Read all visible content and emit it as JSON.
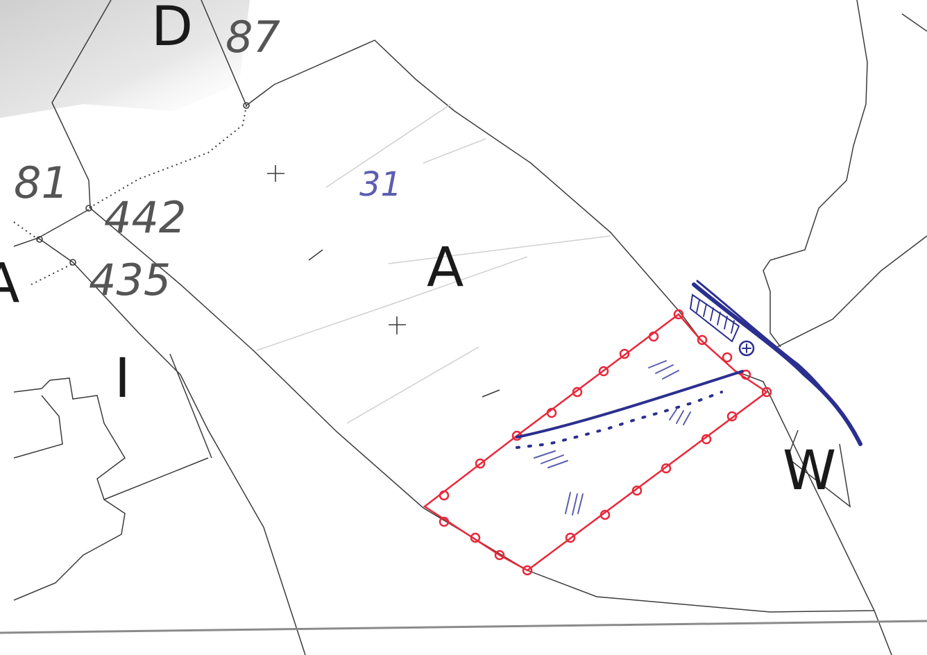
{
  "map": {
    "parcel_numbers": {
      "p87": "87",
      "p81": "81",
      "p442": "442",
      "p435": "435"
    },
    "zone_letters": {
      "d": "D",
      "a": "A",
      "i": "I",
      "w": "W",
      "a_partial": "A"
    },
    "annotation": {
      "handwritten_number": "31",
      "colors": {
        "survey_outline": "#e8283a",
        "annotation_ink": "#2b2f8f",
        "boundary_line": "#3a3a3a",
        "grey_text": "#555555",
        "scan_shadow": "#d8d8d8"
      }
    }
  }
}
